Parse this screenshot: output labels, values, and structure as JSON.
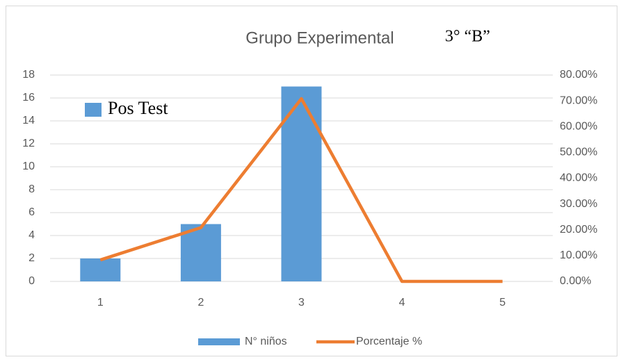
{
  "chart_data": {
    "type": "bar",
    "title": "Grupo Experimental",
    "subtitle": "3° “B”",
    "annotation": "Pos Test",
    "categories": [
      "1",
      "2",
      "3",
      "4",
      "5"
    ],
    "series": [
      {
        "name": "N° niños",
        "type": "bar",
        "color": "#5b9bd5",
        "values": [
          2,
          5,
          17,
          0,
          0
        ]
      },
      {
        "name": "Porcentaje %",
        "type": "line",
        "axis": "y2",
        "color": "#ed7d31",
        "values": [
          8.33,
          20.83,
          70.83,
          0,
          0
        ]
      }
    ],
    "ylim": [
      0,
      18
    ],
    "yticks": [
      0,
      2,
      4,
      6,
      8,
      10,
      12,
      14,
      16,
      18
    ],
    "y2lim": [
      0,
      80
    ],
    "y2ticks": [
      {
        "value": 0,
        "label": "0.00%"
      },
      {
        "value": 10,
        "label": "10.00%"
      },
      {
        "value": 20,
        "label": "20.00%"
      },
      {
        "value": 30,
        "label": "30.00%"
      },
      {
        "value": 40,
        "label": "40.00%"
      },
      {
        "value": 50,
        "label": "50.00%"
      },
      {
        "value": 60,
        "label": "60.00%"
      },
      {
        "value": 70,
        "label": "70.00%"
      },
      {
        "value": 80,
        "label": "80.00%"
      }
    ],
    "grid": true,
    "legend": "bottom"
  }
}
